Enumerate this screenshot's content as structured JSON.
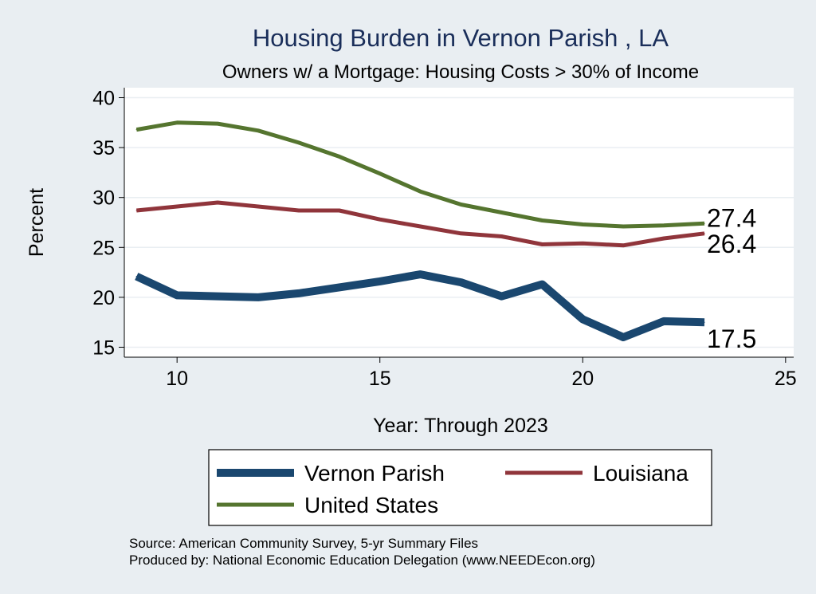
{
  "chart_data": {
    "type": "line",
    "title": "Housing Burden in Vernon Parish , LA",
    "subtitle": "Owners w/ a Mortgage: Housing Costs > 30% of Income",
    "xlabel": "Year: Through 2023",
    "ylabel": "Percent",
    "xlim": [
      8.7,
      25.2
    ],
    "ylim": [
      14,
      41
    ],
    "xticks": [
      10,
      15,
      20,
      25
    ],
    "yticks": [
      15,
      20,
      25,
      30,
      35,
      40
    ],
    "grid": true,
    "legend_position": "bottom",
    "series": [
      {
        "name": "Vernon Parish",
        "color": "#1a476f",
        "x": [
          9,
          10,
          11,
          12,
          13,
          14,
          15,
          16,
          17,
          18,
          19,
          20,
          21,
          22,
          23
        ],
        "values": [
          22.1,
          20.2,
          20.1,
          20.0,
          20.4,
          21.0,
          21.6,
          22.3,
          21.5,
          20.1,
          21.3,
          17.8,
          16.0,
          17.6,
          17.5
        ],
        "end_label": "17.5"
      },
      {
        "name": "Louisiana",
        "color": "#90353b",
        "x": [
          9,
          10,
          11,
          12,
          13,
          14,
          15,
          16,
          17,
          18,
          19,
          20,
          21,
          22,
          23
        ],
        "values": [
          28.7,
          29.1,
          29.5,
          29.1,
          28.7,
          28.7,
          27.8,
          27.1,
          26.4,
          26.1,
          25.3,
          25.4,
          25.2,
          25.9,
          26.4
        ],
        "end_label": "26.4"
      },
      {
        "name": "United States",
        "color": "#55752f",
        "x": [
          9,
          10,
          11,
          12,
          13,
          14,
          15,
          16,
          17,
          18,
          19,
          20,
          21,
          22,
          23
        ],
        "values": [
          36.8,
          37.5,
          37.4,
          36.7,
          35.5,
          34.1,
          32.4,
          30.6,
          29.3,
          28.5,
          27.7,
          27.3,
          27.1,
          27.2,
          27.4
        ],
        "end_label": "27.4"
      }
    ],
    "notes": [
      "Source: American Community Survey, 5-yr Summary Files",
      "Produced by: National Economic Education Delegation (www.NEEDEcon.org)"
    ]
  }
}
